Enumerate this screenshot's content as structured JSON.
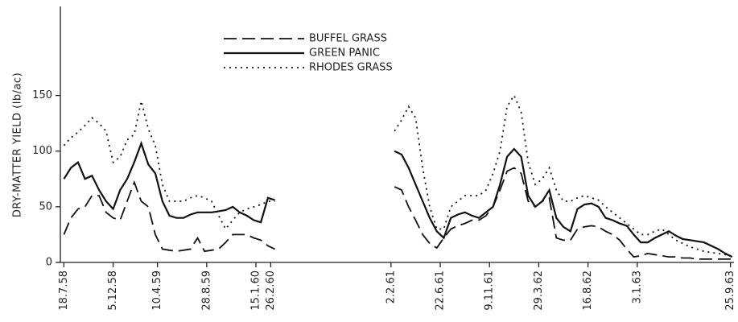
{
  "chart_data": {
    "type": "line",
    "ylabel": "DRY-MATTER YIELD (lb/ac)",
    "x": [
      0,
      20,
      40,
      60,
      80,
      100,
      120,
      140,
      160,
      180,
      200,
      220,
      240,
      260,
      280,
      300,
      320,
      340,
      360,
      380,
      400,
      420,
      440,
      460,
      480,
      500,
      520,
      540,
      560,
      580,
      600,
      620,
      640,
      660,
      680,
      700,
      720,
      740,
      760,
      780,
      800,
      820,
      840,
      860,
      880,
      900,
      920,
      940,
      960,
      980,
      1000,
      1020,
      1040,
      1060,
      1080,
      1100,
      1120,
      1140,
      1160,
      1180,
      1200,
      1220,
      1240,
      1260,
      1280,
      1300,
      1320,
      1340,
      1360,
      1380,
      1400,
      1420,
      1440,
      1460,
      1480,
      1500,
      1520,
      1540,
      1560,
      1580,
      1600,
      1620,
      1640,
      1660,
      1680,
      1700,
      1720,
      1740,
      1760,
      1780,
      1800,
      1820,
      1840,
      1860,
      1880,
      1900
    ],
    "xlim": [
      -10,
      1905
    ],
    "xticks": [
      {
        "value": 0,
        "label": "18.7.58"
      },
      {
        "value": 140,
        "label": "5.12.58"
      },
      {
        "value": 266,
        "label": "10.4.59"
      },
      {
        "value": 406,
        "label": "28.8.59"
      },
      {
        "value": 546,
        "label": "15.1.60"
      },
      {
        "value": 588,
        "label": "26.2.60"
      },
      {
        "value": 930,
        "label": "2.2.61"
      },
      {
        "value": 1070,
        "label": "22.6.61"
      },
      {
        "value": 1210,
        "label": "9.11.61"
      },
      {
        "value": 1350,
        "label": "29.3.62"
      },
      {
        "value": 1490,
        "label": "16.8.62"
      },
      {
        "value": 1630,
        "label": "3.1.63"
      },
      {
        "value": 1895,
        "label": "25.9.63"
      }
    ],
    "ylim": [
      0,
      230
    ],
    "yticks": [
      0,
      50,
      100,
      150
    ],
    "legend": "top",
    "series": [
      {
        "name": "BUFFEL GRASS",
        "color": "#111",
        "dash": "16 7",
        "values": [
          25,
          40,
          48,
          50,
          60,
          60,
          45,
          40,
          38,
          55,
          72,
          55,
          50,
          25,
          12,
          11,
          10,
          11,
          12,
          22,
          10,
          11,
          12,
          18,
          25,
          25,
          25,
          22,
          20,
          15,
          12,
          null,
          null,
          null,
          null,
          null,
          null,
          null,
          null,
          null,
          null,
          null,
          null,
          null,
          null,
          null,
          null,
          68,
          65,
          50,
          38,
          25,
          17,
          13,
          22,
          30,
          33,
          35,
          38,
          38,
          42,
          50,
          65,
          82,
          85,
          80,
          55,
          50,
          55,
          58,
          22,
          20,
          20,
          30,
          32,
          33,
          32,
          28,
          25,
          20,
          12,
          5,
          6,
          8,
          7,
          6,
          5,
          5,
          4,
          4,
          3,
          3,
          3,
          3,
          3,
          3
        ]
      },
      {
        "name": "GREEN PANIC",
        "color": "#111",
        "dash": "none",
        "values": [
          75,
          85,
          90,
          75,
          78,
          65,
          55,
          48,
          65,
          75,
          90,
          107,
          88,
          80,
          55,
          42,
          40,
          40,
          43,
          45,
          45,
          45,
          46,
          47,
          50,
          45,
          42,
          38,
          36,
          58,
          56,
          null,
          null,
          null,
          null,
          null,
          null,
          null,
          null,
          null,
          null,
          null,
          null,
          null,
          null,
          null,
          null,
          100,
          97,
          85,
          70,
          55,
          40,
          28,
          22,
          40,
          43,
          45,
          42,
          40,
          45,
          50,
          70,
          95,
          102,
          95,
          60,
          50,
          55,
          65,
          40,
          32,
          28,
          48,
          52,
          53,
          50,
          40,
          38,
          35,
          33,
          25,
          18,
          18,
          22,
          25,
          28,
          24,
          21,
          20,
          19,
          18,
          15,
          12,
          8,
          5
        ]
      },
      {
        "name": "RHODES GRASS",
        "color": "#111",
        "dash": "2 5",
        "values": [
          105,
          112,
          117,
          123,
          130,
          125,
          118,
          90,
          95,
          110,
          115,
          145,
          120,
          105,
          70,
          55,
          55,
          55,
          58,
          60,
          58,
          55,
          42,
          30,
          38,
          45,
          48,
          50,
          52,
          55,
          55,
          null,
          null,
          null,
          null,
          null,
          null,
          null,
          null,
          null,
          null,
          null,
          null,
          null,
          null,
          null,
          null,
          118,
          128,
          140,
          130,
          85,
          50,
          30,
          30,
          50,
          55,
          60,
          60,
          60,
          65,
          80,
          100,
          140,
          150,
          135,
          90,
          70,
          75,
          85,
          65,
          55,
          55,
          58,
          60,
          58,
          56,
          50,
          45,
          40,
          35,
          30,
          25,
          25,
          28,
          30,
          25,
          20,
          17,
          14,
          12,
          10,
          9,
          8,
          7,
          5
        ]
      }
    ]
  }
}
